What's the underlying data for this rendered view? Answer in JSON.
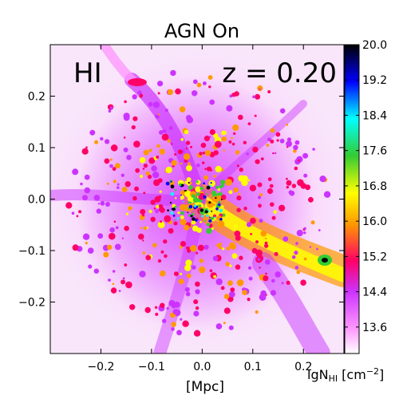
{
  "chart_data": {
    "type": "heatmap",
    "title": "AGN On",
    "species_label": "HI",
    "redshift_label": "z = 0.20",
    "xlabel": "[Mpc]",
    "colorbar_label": "lgN",
    "colorbar_label_sub": "HI",
    "colorbar_label_unit": " [cm",
    "colorbar_label_exp": "−2",
    "colorbar_label_close": "]",
    "xlim": [
      -0.3,
      0.28
    ],
    "ylim": [
      -0.3,
      0.3
    ],
    "x_ticks": [
      -0.2,
      -0.1,
      0.0,
      0.1,
      0.2
    ],
    "x_tick_labels": [
      "−0.2",
      "−0.1",
      "0.0",
      "0.1",
      "0.2"
    ],
    "y_ticks": [
      0.2,
      0.1,
      0.0,
      -0.1,
      -0.2
    ],
    "y_tick_labels": [
      "0.2",
      "0.1",
      "0.0",
      "−0.1",
      "−0.2"
    ],
    "colorbar_range": [
      13.0,
      20.0
    ],
    "colorbar_ticks": [
      20.0,
      19.2,
      18.4,
      17.6,
      16.8,
      16.0,
      15.2,
      14.4,
      13.6
    ],
    "colorbar_tick_labels": [
      "20.0",
      "19.2",
      "18.4",
      "17.6",
      "16.8",
      "16.0",
      "15.2",
      "14.4",
      "13.6"
    ],
    "colormap": [
      "#ffffff",
      "#ff99ff",
      "#cc33ff",
      "#ff0066",
      "#ff9900",
      "#ffff00",
      "#33cc33",
      "#00ffff",
      "#0000ff",
      "#000000"
    ]
  }
}
